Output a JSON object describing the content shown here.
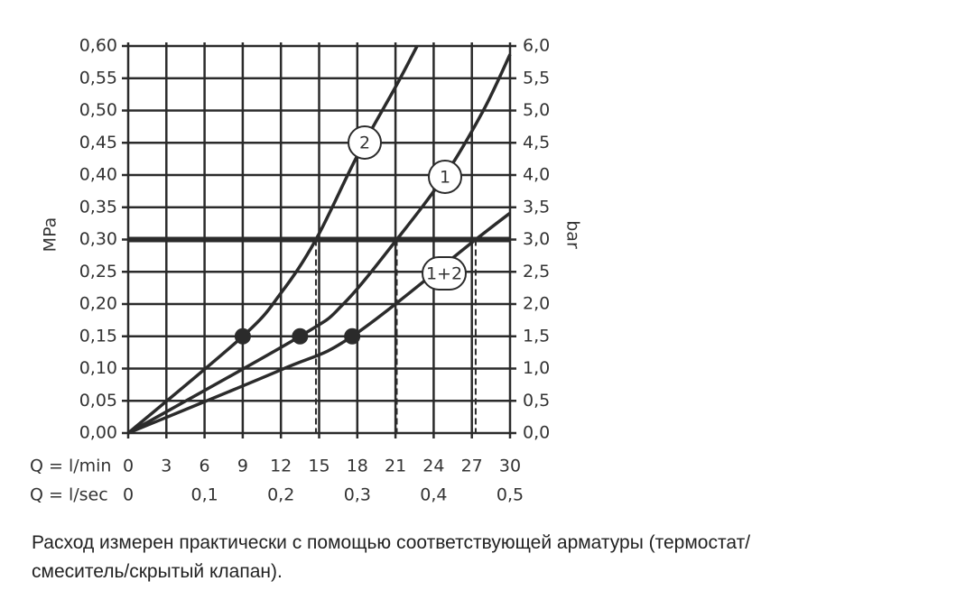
{
  "chart_data": {
    "type": "line",
    "x_label": "Q = l/min",
    "x2_label": "Q = l/sec",
    "y_label": "MPa",
    "y2_label": "bar",
    "xlim": [
      0,
      30
    ],
    "xticks": [
      0,
      3,
      6,
      9,
      12,
      15,
      18,
      21,
      24,
      27,
      30
    ],
    "x2lim": [
      0,
      0.5
    ],
    "x2ticks": [
      0,
      {
        "value": 0.1,
        "label": "0,1"
      },
      {
        "value": 0.2,
        "label": "0,2"
      },
      {
        "value": 0.3,
        "label": "0,3"
      },
      {
        "value": 0.4,
        "label": "0,4"
      },
      {
        "value": 0.5,
        "label": "0,5"
      }
    ],
    "ylim": [
      0,
      0.6
    ],
    "yticks": [
      {
        "value": 0,
        "label": "0,00"
      },
      {
        "value": 0.05,
        "label": "0,05"
      },
      {
        "value": 0.1,
        "label": "0,10"
      },
      {
        "value": 0.15,
        "label": "0,15"
      },
      {
        "value": 0.2,
        "label": "0,20"
      },
      {
        "value": 0.25,
        "label": "0,25"
      },
      {
        "value": 0.3,
        "label": "0,30"
      },
      {
        "value": 0.35,
        "label": "0,35"
      },
      {
        "value": 0.4,
        "label": "0,40"
      },
      {
        "value": 0.45,
        "label": "0,45"
      },
      {
        "value": 0.5,
        "label": "0,50"
      },
      {
        "value": 0.55,
        "label": "0,55"
      },
      {
        "value": 0.6,
        "label": "0,60"
      }
    ],
    "y2lim": [
      0,
      6
    ],
    "y2ticks": [
      {
        "value": 0,
        "label": "0,0"
      },
      {
        "value": 0.5,
        "label": "0,5"
      },
      {
        "value": 1,
        "label": "1,0"
      },
      {
        "value": 1.5,
        "label": "1,5"
      },
      {
        "value": 2,
        "label": "2,0"
      },
      {
        "value": 2.5,
        "label": "2,5"
      },
      {
        "value": 3,
        "label": "3,0"
      },
      {
        "value": 3.5,
        "label": "3,5"
      },
      {
        "value": 4,
        "label": "4,0"
      },
      {
        "value": 4.5,
        "label": "4,5"
      },
      {
        "value": 5,
        "label": "5,0"
      },
      {
        "value": 5.5,
        "label": "5,5"
      },
      {
        "value": 6,
        "label": "6,0"
      }
    ],
    "grid": true,
    "color": "#2b2b2b",
    "series": [
      {
        "name": "2",
        "x": [
          0,
          9,
          12,
          14.75,
          18,
          21.1,
          22.7
        ],
        "values": [
          0,
          0.15,
          0.217,
          0.3,
          0.43,
          0.54,
          0.6
        ]
      },
      {
        "name": "1",
        "x": [
          0,
          13.5,
          16.9,
          21.1,
          24.9,
          27.9,
          30
        ],
        "values": [
          0,
          0.15,
          0.2,
          0.3,
          0.4,
          0.5,
          0.587
        ]
      },
      {
        "name": "1+2",
        "x": [
          0,
          12,
          17.6,
          27.3,
          30
        ],
        "values": [
          0,
          0.098,
          0.15,
          0.3,
          0.341
        ]
      }
    ],
    "points": {
      "x": [
        9,
        13.5,
        17.6
      ],
      "values": [
        0.15,
        0.15,
        0.15
      ]
    },
    "reference_line": 0.3,
    "intersections": [
      14.75,
      21.1,
      27.3
    ]
  },
  "caption": [
    "Расход измерен практически с помощью соответствующей арматуры (термостат/",
    "смеситель/скрытый клапан)."
  ]
}
